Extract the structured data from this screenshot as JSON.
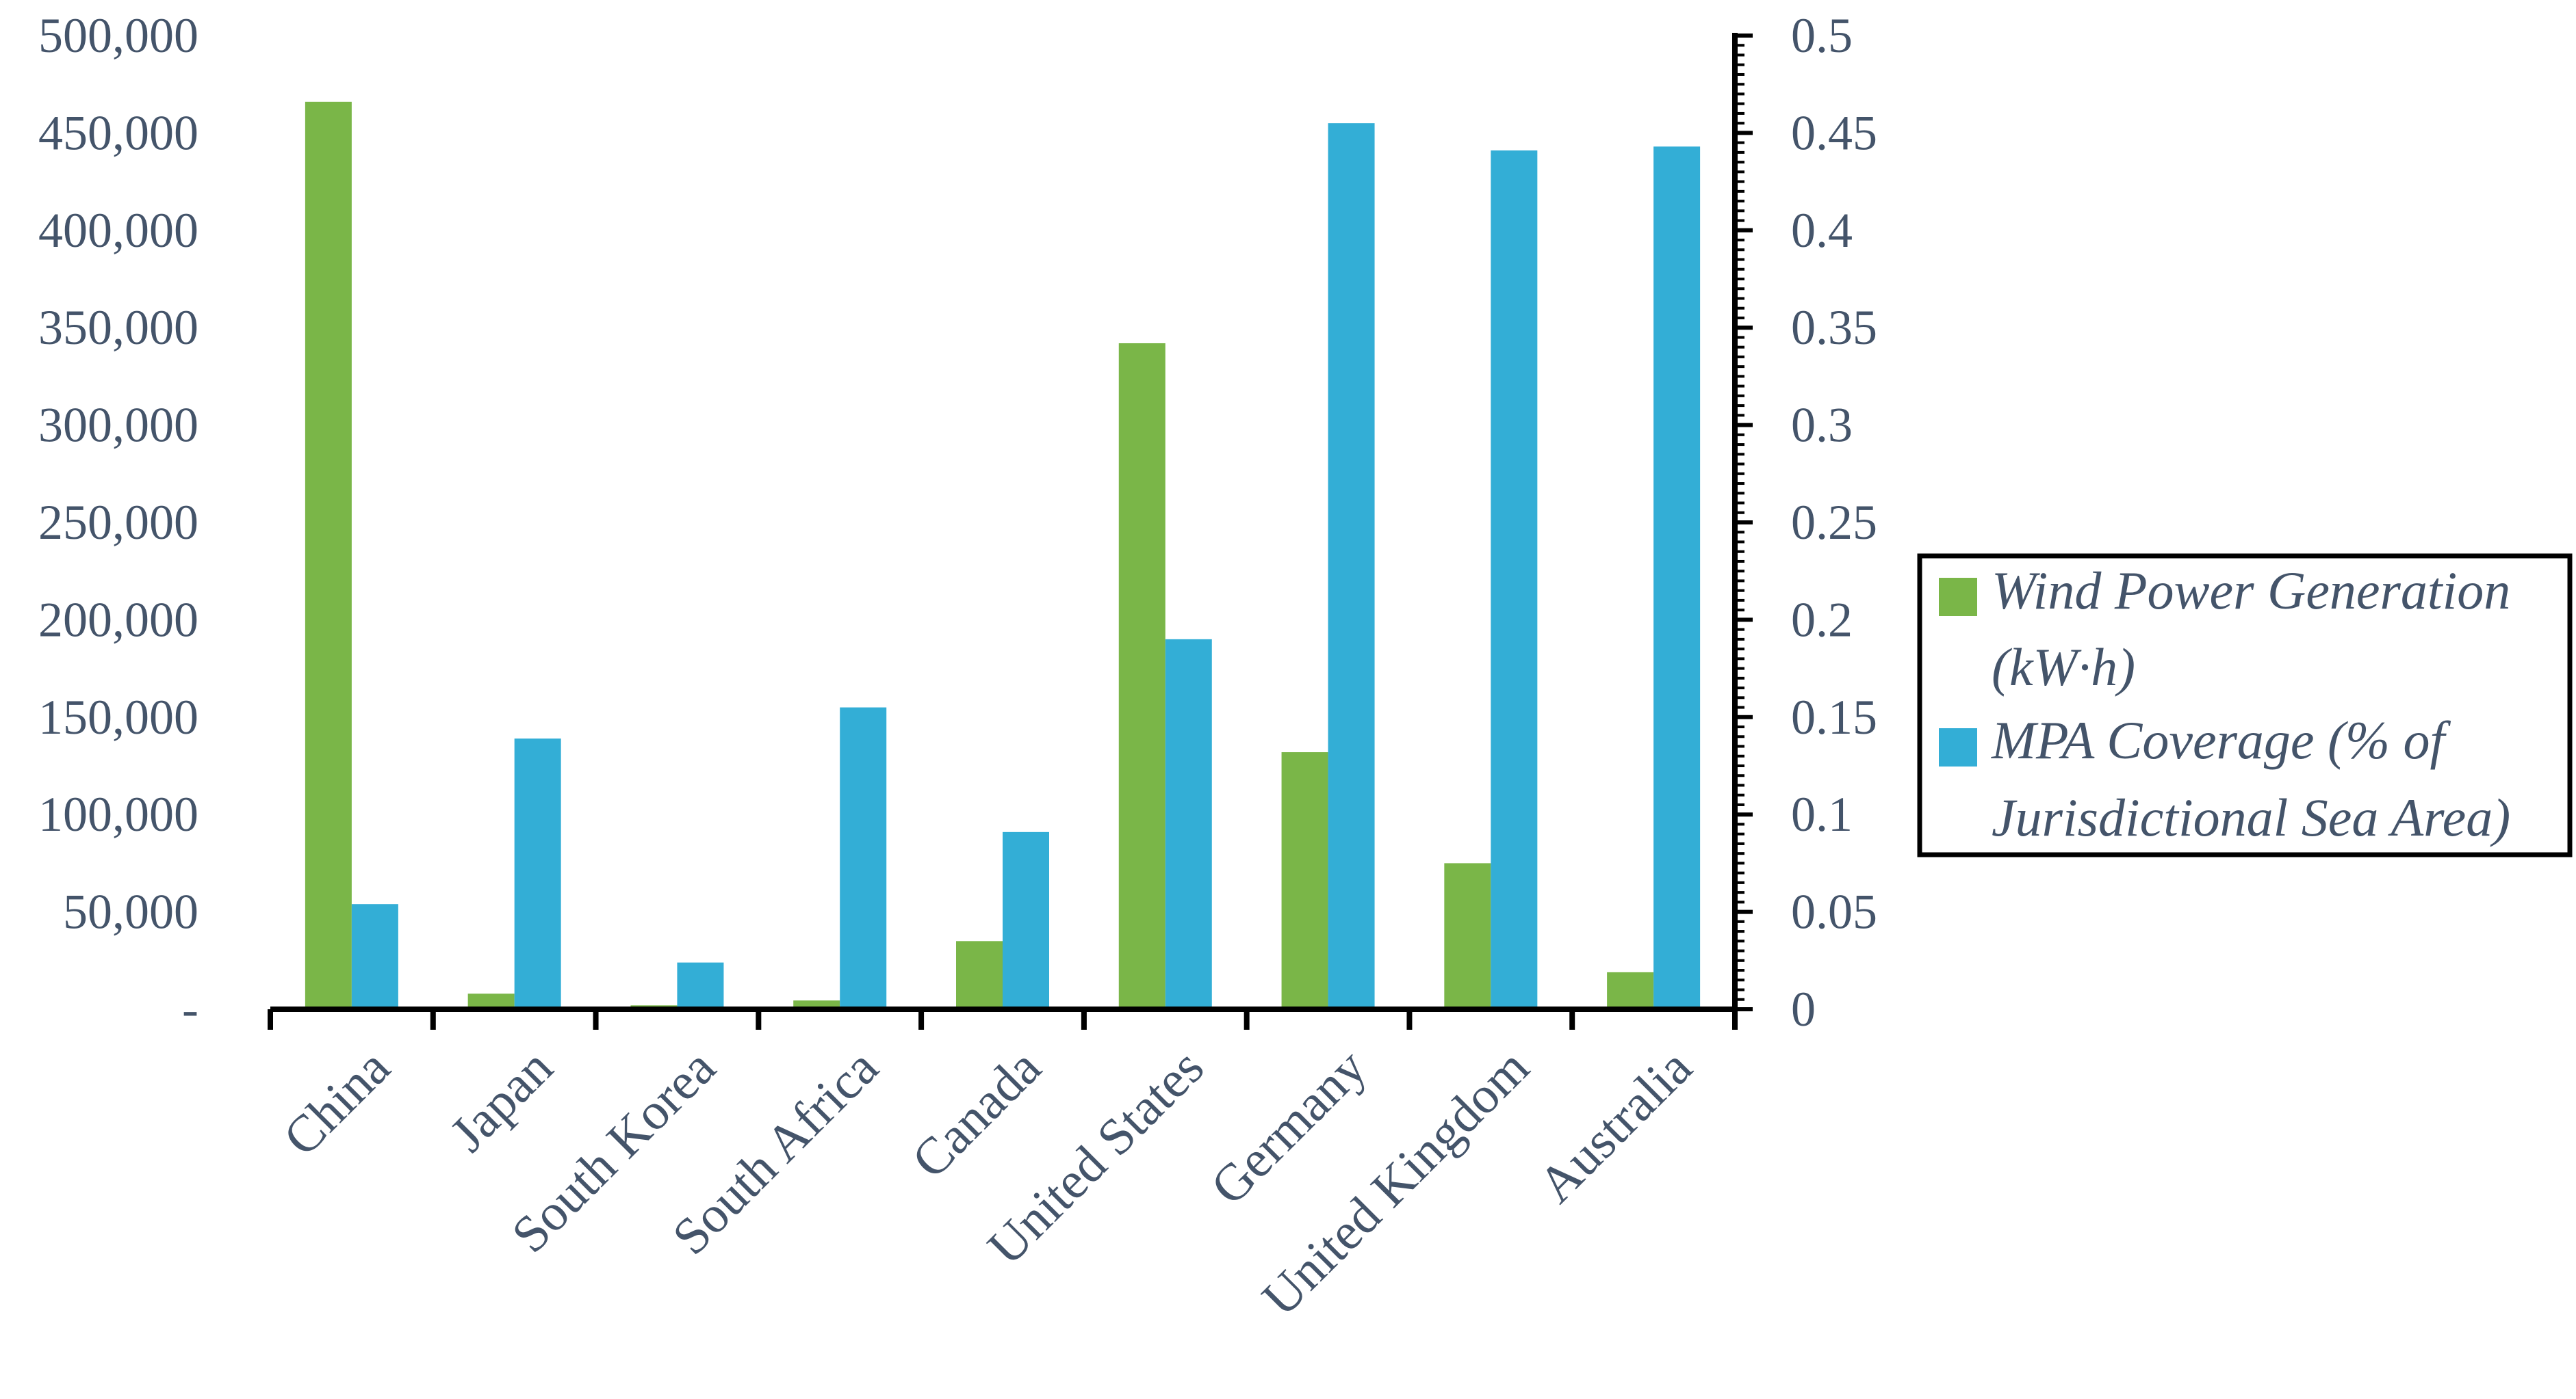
{
  "chart_data": {
    "type": "bar",
    "categories": [
      "China",
      "Japan",
      "South Korea",
      "South Africa",
      "Canada",
      "United States",
      "Germany",
      "United Kingdom",
      "Australia"
    ],
    "series": [
      {
        "name": "Wind Power Generation (kW·h)",
        "legend_lines": [
          "Wind Power Generation",
          "(kW·h)"
        ],
        "axis": "left",
        "color": "#7ab648",
        "values": [
          466000,
          8000,
          2000,
          4500,
          35000,
          342000,
          132000,
          75000,
          19000
        ]
      },
      {
        "name": "MPA Coverage (% of Jurisdictional Sea Area)",
        "legend_lines": [
          "MPA Coverage (% of",
          "Jurisdictional Sea Area)"
        ],
        "axis": "right",
        "color": "#33aed6",
        "values": [
          0.054,
          0.139,
          0.024,
          0.155,
          0.091,
          0.19,
          0.455,
          0.441,
          0.443
        ]
      }
    ],
    "y_left": {
      "lim": [
        0,
        500000
      ],
      "ticks": [
        0,
        50000,
        100000,
        150000,
        200000,
        250000,
        300000,
        350000,
        400000,
        450000,
        500000
      ],
      "tick_labels": [
        "-",
        "50,000",
        "100,000",
        "150,000",
        "200,000",
        "250,000",
        "300,000",
        "350,000",
        "400,000",
        "450,000",
        "500,000"
      ]
    },
    "y_right": {
      "lim": [
        0,
        0.5
      ],
      "ticks": [
        0,
        0.05,
        0.1,
        0.15,
        0.2,
        0.25,
        0.3,
        0.35,
        0.4,
        0.45,
        0.5
      ],
      "tick_labels": [
        "0",
        "0.05",
        "0.1",
        "0.15",
        "0.2",
        "0.25",
        "0.3",
        "0.35",
        "0.4",
        "0.45",
        "0.5"
      ]
    },
    "legend_position": "right",
    "grid": false
  }
}
